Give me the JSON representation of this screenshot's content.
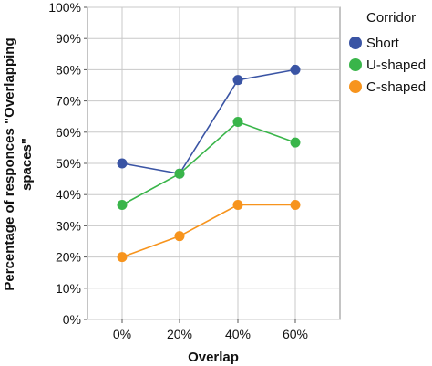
{
  "chart_data": {
    "type": "line",
    "categories": [
      "0%",
      "20%",
      "40%",
      "60%"
    ],
    "xlabel": "Overlap",
    "ylabel_lines": [
      "Percentage of responces \"Overlapping",
      "spaces\""
    ],
    "ylim": [
      0,
      100
    ],
    "yticks": [
      0,
      10,
      20,
      30,
      40,
      50,
      60,
      70,
      80,
      90,
      100
    ],
    "ytick_labels": [
      "0%",
      "10%",
      "20%",
      "30%",
      "40%",
      "50%",
      "60%",
      "70%",
      "80%",
      "90%",
      "100%"
    ],
    "grid": true,
    "legend": {
      "title": "Corridor",
      "placement": "right"
    },
    "series": [
      {
        "name": "Short",
        "color": "#3a54a4",
        "values": [
          50,
          46.7,
          76.7,
          80
        ]
      },
      {
        "name": "U-shaped",
        "color": "#39b54a",
        "values": [
          36.7,
          46.7,
          63.3,
          56.7
        ]
      },
      {
        "name": "C-shaped",
        "color": "#f7941d",
        "values": [
          20,
          26.7,
          36.7,
          36.7
        ]
      }
    ]
  }
}
